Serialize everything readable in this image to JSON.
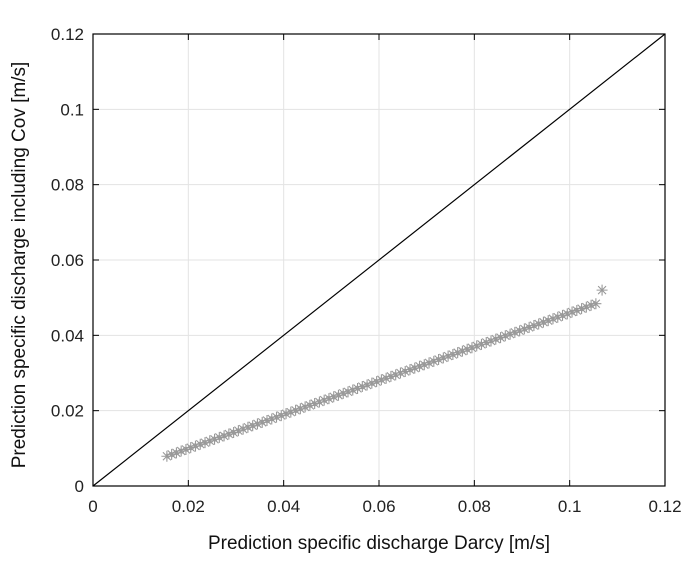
{
  "chart_data": {
    "type": "scatter",
    "xlabel": "Prediction specific discharge Darcy [m/s]",
    "ylabel": "Prediction specific discharge including Cov [m/s]",
    "xlim": [
      0,
      0.12
    ],
    "ylim": [
      0,
      0.12
    ],
    "grid": true,
    "x_ticks": [
      0,
      0.02,
      0.04,
      0.06,
      0.08,
      0.1,
      0.12
    ],
    "y_ticks": [
      0,
      0.02,
      0.04,
      0.06,
      0.08,
      0.1,
      0.12
    ],
    "x_tick_labels": [
      "0",
      "0.02",
      "0.04",
      "0.06",
      "0.08",
      "0.1",
      "0.12"
    ],
    "y_tick_labels": [
      "0",
      "0.02",
      "0.04",
      "0.06",
      "0.08",
      "0.1",
      "0.12"
    ],
    "reference_line": {
      "x": [
        0,
        0.12
      ],
      "y": [
        0,
        0.12
      ],
      "color": "#000000"
    },
    "series": [
      {
        "marker": "asterisk",
        "color": "#999999",
        "x": [
          0.0155,
          0.0165,
          0.0175,
          0.0185,
          0.0195,
          0.0205,
          0.0215,
          0.0225,
          0.0235,
          0.0245,
          0.0255,
          0.0265,
          0.0275,
          0.0285,
          0.0295,
          0.0305,
          0.0315,
          0.0325,
          0.0335,
          0.0345,
          0.0355,
          0.0365,
          0.0375,
          0.0385,
          0.0395,
          0.0405,
          0.0415,
          0.0425,
          0.0435,
          0.0445,
          0.0455,
          0.0465,
          0.0475,
          0.0485,
          0.0495,
          0.0505,
          0.0515,
          0.0525,
          0.0535,
          0.0545,
          0.0555,
          0.0565,
          0.0575,
          0.0585,
          0.0595,
          0.0605,
          0.0615,
          0.0625,
          0.0635,
          0.0645,
          0.0655,
          0.0665,
          0.0675,
          0.0685,
          0.0695,
          0.0705,
          0.0715,
          0.0725,
          0.0735,
          0.0745,
          0.0755,
          0.0765,
          0.0775,
          0.0785,
          0.0795,
          0.0805,
          0.0815,
          0.0825,
          0.0835,
          0.0845,
          0.0855,
          0.0865,
          0.0875,
          0.0885,
          0.0895,
          0.0905,
          0.0915,
          0.0925,
          0.0935,
          0.0945,
          0.0955,
          0.0965,
          0.0975,
          0.0985,
          0.0995,
          0.1005,
          0.1015,
          0.1025,
          0.1035,
          0.1045,
          0.1055,
          0.1068
        ],
        "y": [
          0.0079,
          0.0084,
          0.0088,
          0.0093,
          0.0097,
          0.0102,
          0.0106,
          0.0111,
          0.0115,
          0.012,
          0.0124,
          0.0129,
          0.0133,
          0.0138,
          0.0142,
          0.0147,
          0.0151,
          0.0156,
          0.016,
          0.0165,
          0.0169,
          0.0174,
          0.0178,
          0.0183,
          0.0187,
          0.0192,
          0.0196,
          0.0201,
          0.0205,
          0.021,
          0.0214,
          0.0219,
          0.0223,
          0.0228,
          0.0232,
          0.0237,
          0.0241,
          0.0246,
          0.025,
          0.0255,
          0.0259,
          0.0264,
          0.0268,
          0.0273,
          0.0277,
          0.0282,
          0.0286,
          0.0291,
          0.0295,
          0.03,
          0.0304,
          0.0309,
          0.0313,
          0.0318,
          0.0322,
          0.0327,
          0.0331,
          0.0336,
          0.034,
          0.0345,
          0.0349,
          0.0354,
          0.0358,
          0.0363,
          0.0367,
          0.0372,
          0.0376,
          0.0381,
          0.0385,
          0.039,
          0.0394,
          0.0399,
          0.0403,
          0.0408,
          0.0412,
          0.0417,
          0.0421,
          0.0426,
          0.043,
          0.0435,
          0.0439,
          0.0444,
          0.0448,
          0.0453,
          0.0457,
          0.0462,
          0.0466,
          0.0471,
          0.0475,
          0.048,
          0.0484,
          0.052
        ]
      }
    ]
  }
}
